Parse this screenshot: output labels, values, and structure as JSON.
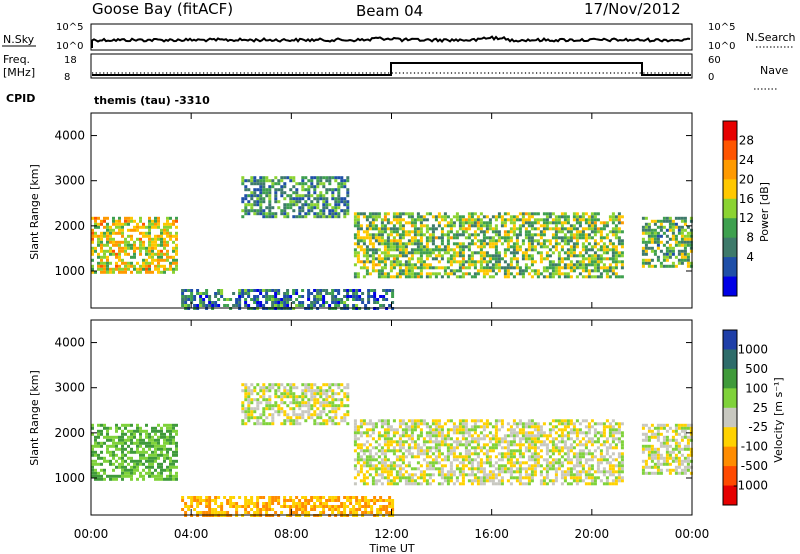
{
  "header": {
    "station": "Goose Bay (fitACF)",
    "beam": "Beam 04",
    "date": "17/Nov/2012"
  },
  "noise_panel": {
    "left_label": "N.Sky",
    "left_ticks": [
      "10^5",
      "10^0"
    ],
    "right_label": "N.Search",
    "right_ticks": [
      "10^5",
      "10^0"
    ]
  },
  "freq_panel": {
    "left_label_line1": "Freq.",
    "left_label_line2": "[MHz]",
    "left_ticks": [
      "18",
      "8"
    ],
    "right_label": "Nave",
    "right_ticks": [
      "60",
      "0"
    ]
  },
  "cpid": {
    "label": "CPID",
    "value": "themis (tau) -3310"
  },
  "power_panel": {
    "ylabel": "Slant Range [km]",
    "yticks": [
      "1000",
      "2000",
      "3000",
      "4000"
    ],
    "colorbar_label": "Power [dB]",
    "colorbar_ticks": [
      "28",
      "24",
      "20",
      "16",
      "12",
      "8",
      "4"
    ],
    "colorbar_colors": [
      "#e60000",
      "#ff5500",
      "#ff9a00",
      "#ffc800",
      "#8bd332",
      "#3ea04e",
      "#3e7a6a",
      "#1f4fa8",
      "#0000e6"
    ]
  },
  "velocity_panel": {
    "ylabel": "Slant Range [km]",
    "yticks": [
      "1000",
      "2000",
      "3000",
      "4000"
    ],
    "colorbar_label": "Velocity [m s⁻¹]",
    "colorbar_ticks": [
      "1000",
      "500",
      "100",
      "25",
      "-25",
      "-100",
      "-500",
      "-1000"
    ],
    "colorbar_colors": [
      "#1f3fa8",
      "#2e6c6a",
      "#3f9a3a",
      "#7fd23a",
      "#c8c8c0",
      "#ffd200",
      "#ff8c00",
      "#ff4a00",
      "#e60000"
    ]
  },
  "xaxis": {
    "label": "Time UT",
    "ticks": [
      "00:00",
      "04:00",
      "08:00",
      "12:00",
      "16:00",
      "20:00",
      "00:00"
    ]
  },
  "chart_data": {
    "type": "heatmap",
    "title": "Goose Bay (fitACF) Beam 04 17/Nov/2012",
    "xlabel": "Time UT",
    "ylabel": "Slant Range [km]",
    "xlim": [
      "00:00",
      "24:00"
    ],
    "ylim": [
      180,
      4500
    ],
    "frequency_mhz": {
      "before_12UT": 10,
      "after_12UT_until_21:50UT": 16
    },
    "series": [
      {
        "name": "Power [dB]",
        "scale": [
          0,
          30
        ],
        "regions": [
          {
            "t_start": 0.0,
            "t_end": 3.4,
            "range_min": 1000,
            "range_max": 2200,
            "value": 18
          },
          {
            "t_start": 6.0,
            "t_end": 10.2,
            "range_min": 2200,
            "range_max": 3100,
            "value": 9
          },
          {
            "t_start": 10.5,
            "t_end": 21.2,
            "range_min": 900,
            "range_max": 2300,
            "value": 14
          },
          {
            "t_start": 22.0,
            "t_end": 24.0,
            "range_min": 1100,
            "range_max": 2200,
            "value": 12
          },
          {
            "t_start": 3.6,
            "t_end": 12.0,
            "range_min": 200,
            "range_max": 600,
            "value": 7
          }
        ]
      },
      {
        "name": "Velocity [m s⁻¹]",
        "scale": [
          -1000,
          1000
        ],
        "regions": [
          {
            "t_start": 0.0,
            "t_end": 3.4,
            "range_min": 1000,
            "range_max": 2200,
            "value": 100
          },
          {
            "t_start": 6.0,
            "t_end": 10.2,
            "range_min": 2200,
            "range_max": 3100,
            "value": 0
          },
          {
            "t_start": 10.5,
            "t_end": 21.2,
            "range_min": 900,
            "range_max": 2300,
            "value": 0
          },
          {
            "t_start": 22.0,
            "t_end": 24.0,
            "range_min": 1100,
            "range_max": 2200,
            "value": 0
          },
          {
            "t_start": 3.6,
            "t_end": 12.0,
            "range_min": 200,
            "range_max": 600,
            "value": -100
          }
        ]
      }
    ]
  }
}
